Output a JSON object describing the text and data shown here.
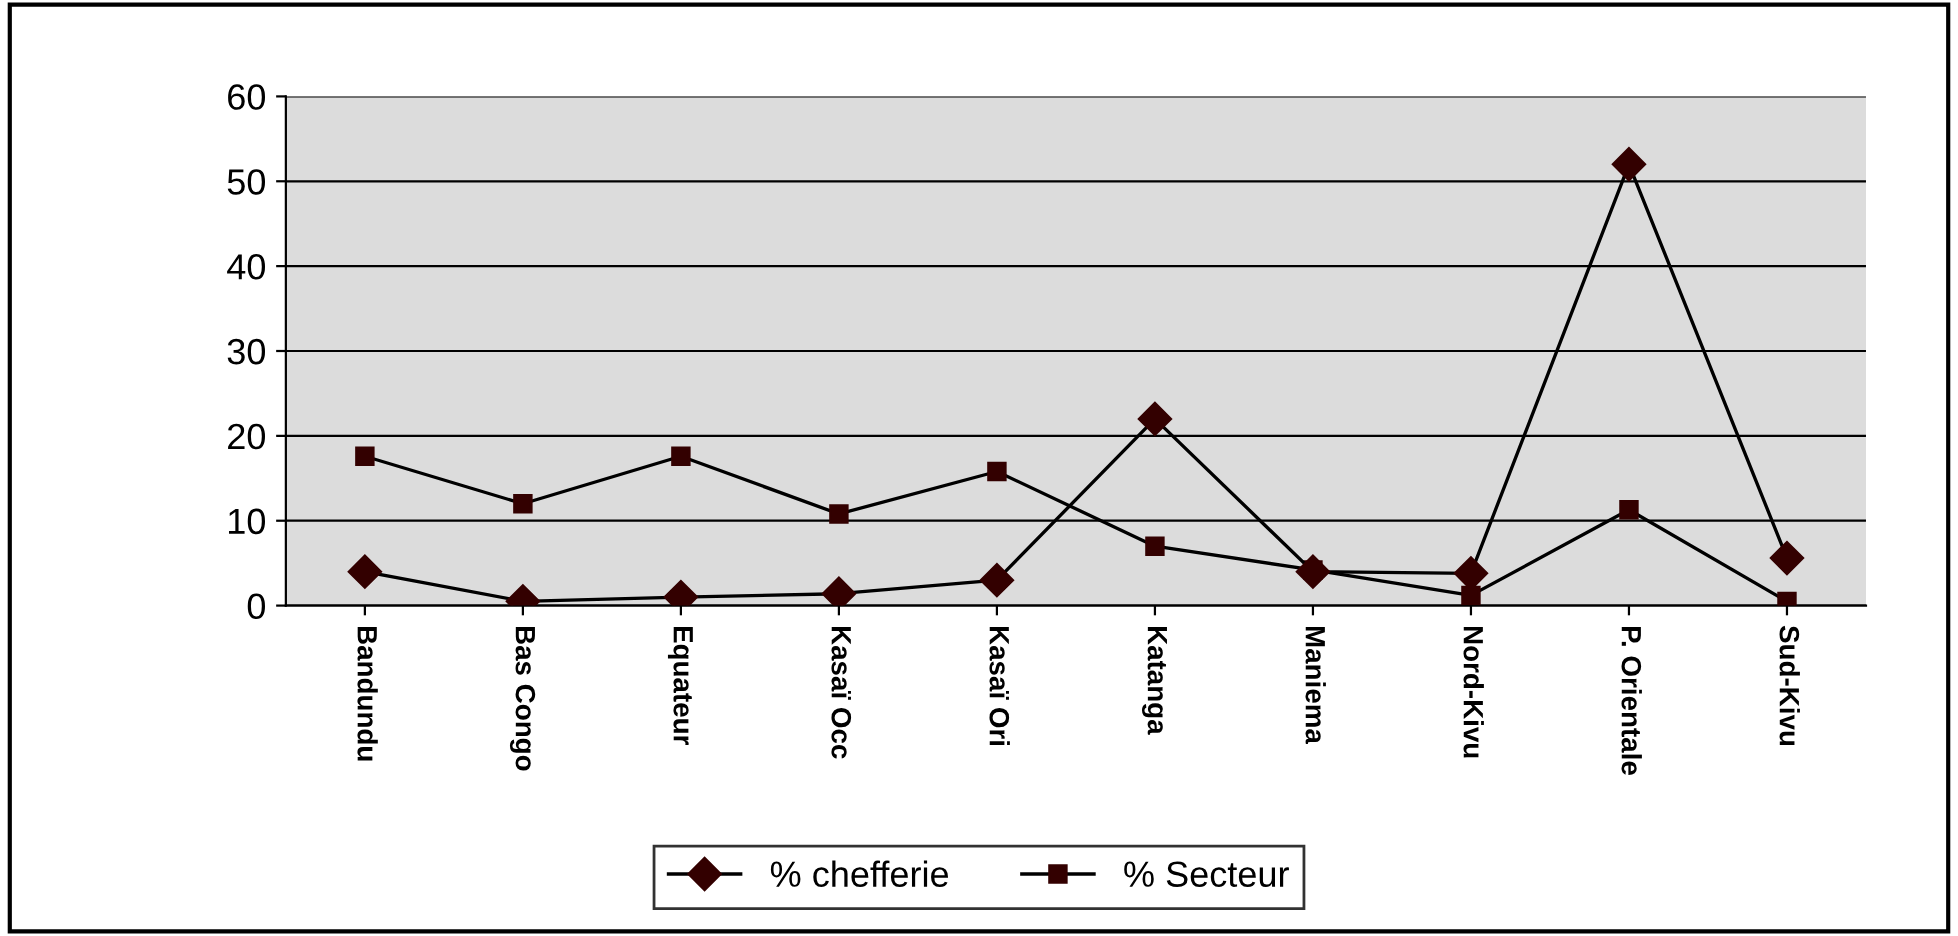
{
  "chart_data": {
    "type": "line",
    "categories": [
      "Bandundu",
      "Bas Congo",
      "Equateur",
      "Kasaï Occ",
      "Kasaï Ori",
      "Katanga",
      "Maniema",
      "Nord-Kivu",
      "P. Orientale",
      "Sud-Kivu"
    ],
    "series": [
      {
        "name": "% chefferie",
        "color": "#000000",
        "marker": "diamond",
        "values": [
          4,
          0.5,
          1,
          1.4,
          3,
          22,
          4,
          3.8,
          52,
          5.6
        ]
      },
      {
        "name": "% Secteur",
        "color": "#000000",
        "marker": "square",
        "values": [
          17.6,
          12,
          17.6,
          10.8,
          15.8,
          7,
          4.2,
          1.2,
          11.3,
          0.5
        ]
      }
    ],
    "ylim": [
      0,
      60
    ],
    "yticks": [
      0,
      10,
      20,
      30,
      40,
      50,
      60
    ],
    "grid": "y",
    "legend": "bottom",
    "line_style": "solid"
  }
}
